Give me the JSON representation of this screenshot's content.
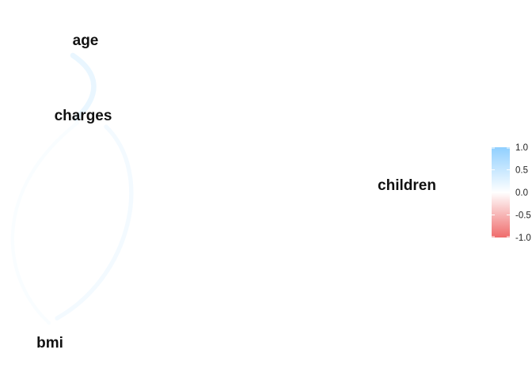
{
  "chart_data": {
    "type": "network",
    "title": "",
    "nodes": [
      {
        "id": "age",
        "label": "age"
      },
      {
        "id": "charges",
        "label": "charges"
      },
      {
        "id": "children",
        "label": "children"
      },
      {
        "id": "bmi",
        "label": "bmi"
      }
    ],
    "edges": [
      {
        "from": "age",
        "to": "charges",
        "correlation": 0.3
      },
      {
        "from": "charges",
        "to": "bmi",
        "correlation": 0.2
      },
      {
        "from": "age",
        "to": "bmi",
        "correlation": 0.11
      }
    ],
    "legend": {
      "position": "right",
      "ticks": [
        "1.0",
        "0.5",
        "0.0",
        "-0.5",
        "-1.0"
      ],
      "range": [
        -1.0,
        1.0
      ],
      "color_negative": "#EF6B6B",
      "color_zero": "#FFFFFF",
      "color_positive": "#8FCFFF"
    }
  }
}
